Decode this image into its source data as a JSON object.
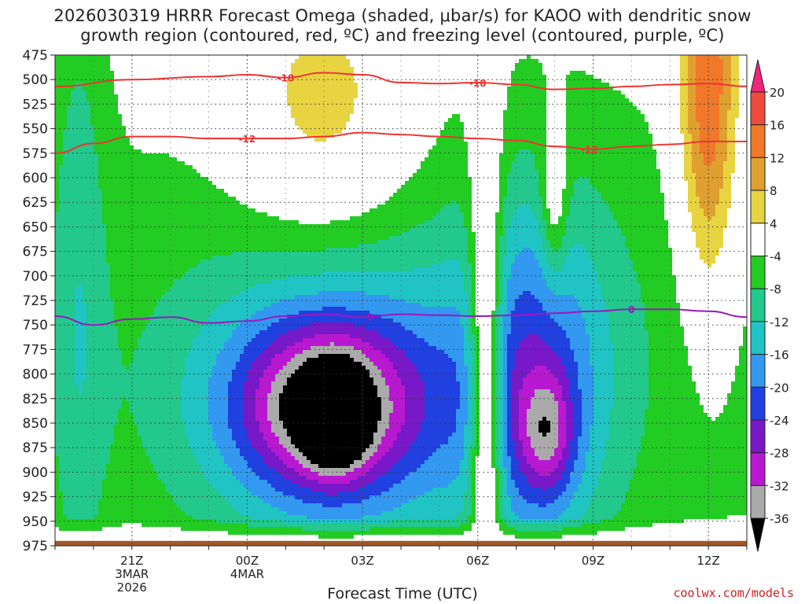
{
  "chart_data": {
    "type": "heatmap",
    "title_line1": "2026030319 HRRR Forecast Omega (shaded, μbar/s) for KAOO with dendritic snow",
    "title_line2": "growth region (contoured, red, ºC) and freezing level (contoured, purple, ºC)",
    "xlabel": "Forecast Time (UTC)",
    "ylabel": "",
    "credit": "coolwx.com/models",
    "y_ticks": [
      475,
      500,
      525,
      550,
      575,
      600,
      625,
      650,
      675,
      700,
      725,
      750,
      775,
      800,
      825,
      850,
      875,
      900,
      925,
      950,
      975
    ],
    "ylim": [
      475,
      975
    ],
    "x_ticks": [
      {
        "h": 2,
        "l1": "21Z",
        "l2": "3MAR",
        "l3": "2026"
      },
      {
        "h": 5,
        "l1": "00Z",
        "l2": "4MAR",
        "l3": ""
      },
      {
        "h": 8,
        "l1": "03Z",
        "l2": "",
        "l3": ""
      },
      {
        "h": 11,
        "l1": "06Z",
        "l2": "",
        "l3": ""
      },
      {
        "h": 14,
        "l1": "09Z",
        "l2": "",
        "l3": ""
      },
      {
        "h": 17,
        "l1": "12Z",
        "l2": "",
        "l3": ""
      }
    ],
    "xlim": [
      0,
      18
    ],
    "colorbar": {
      "labels": [
        "20",
        "16",
        "12",
        "8",
        "4",
        "-4",
        "-8",
        "-12",
        "-16",
        "-20",
        "-24",
        "-28",
        "-32",
        "-36"
      ],
      "levels": [
        20,
        16,
        12,
        8,
        4,
        -4,
        -8,
        -12,
        -16,
        -20,
        -24,
        -28,
        -32,
        -36
      ],
      "colors": [
        "#f0247a",
        "#f04a3c",
        "#f07828",
        "#e0a030",
        "#e8d440",
        "#ffffff",
        "#22cc22",
        "#22c88c",
        "#20c4c4",
        "#3398f0",
        "#2040e0",
        "#7818c8",
        "#b818d0",
        "#aaaaaa",
        "#000000"
      ]
    },
    "omega_features": [
      {
        "name": "broad-green",
        "x": 9.5,
        "p": 780,
        "sx": 8.2,
        "sp": 230,
        "v": -9
      },
      {
        "name": "left-column",
        "x": 0.6,
        "p": 700,
        "sx": 0.55,
        "sp": 300,
        "v": -7
      },
      {
        "name": "main-core",
        "x": 7.3,
        "p": 830,
        "sx": 2.6,
        "sp": 95,
        "v": -16
      },
      {
        "name": "main-core-deep",
        "x": 7.0,
        "p": 835,
        "sx": 1.4,
        "sp": 55,
        "v": -20
      },
      {
        "name": "main-black",
        "x": 7.3,
        "p": 845,
        "sx": 0.5,
        "sp": 32,
        "v": -22
      },
      {
        "name": "second-core",
        "x": 12.5,
        "p": 810,
        "sx": 1.3,
        "sp": 130,
        "v": -14
      },
      {
        "name": "second-deep",
        "x": 12.8,
        "p": 860,
        "sx": 0.5,
        "sp": 45,
        "v": -14
      },
      {
        "name": "upper-sink",
        "x": 7.0,
        "p": 540,
        "sx": 1.7,
        "sp": 100,
        "v": 10
      },
      {
        "name": "small-sink",
        "x": 13.0,
        "p": 625,
        "sx": 0.25,
        "sp": 60,
        "v": 10
      },
      {
        "name": "right-sink",
        "x": 17.0,
        "p": 520,
        "sx": 0.55,
        "sp": 150,
        "v": 18
      },
      {
        "name": "clear-gap",
        "x": 11.2,
        "p": 750,
        "sx": 0.3,
        "sp": 400,
        "v": 4
      },
      {
        "name": "ground-mask",
        "x": 9.0,
        "p": 1000,
        "sx": 30,
        "sp": 30,
        "v": 0
      }
    ],
    "series": [
      {
        "name": "-18 C isotherm",
        "color": "#ee3333",
        "label": "-18",
        "x": [
          0,
          2,
          4,
          5,
          6,
          7,
          8,
          9,
          10,
          11,
          12,
          13,
          14,
          15,
          16,
          17,
          18
        ],
        "p": [
          507,
          500,
          497,
          495,
          498,
          493,
          495,
          503,
          504,
          503,
          505,
          510,
          509,
          507,
          505,
          504,
          507
        ]
      },
      {
        "name": "-12 C isotherm",
        "color": "#ee3333",
        "label": "-12",
        "x": [
          0,
          1,
          2,
          3,
          4,
          5,
          6,
          7,
          8,
          9,
          10,
          11,
          12,
          13,
          14,
          15,
          16,
          17,
          18
        ],
        "p": [
          575,
          565,
          558,
          558,
          560,
          560,
          560,
          558,
          554,
          556,
          558,
          560,
          562,
          568,
          571,
          568,
          566,
          563,
          563
        ]
      },
      {
        "name": "0 C freezing level",
        "color": "#9a18c0",
        "label": "0",
        "x": [
          0,
          1,
          2,
          3,
          4,
          5,
          6,
          7,
          8,
          9,
          10,
          11,
          12,
          13,
          14,
          15,
          16,
          17,
          18
        ],
        "p": [
          741,
          750,
          744,
          742,
          748,
          746,
          741,
          739,
          742,
          739,
          740,
          741,
          740,
          738,
          736,
          734,
          734,
          736,
          742
        ]
      }
    ],
    "ground_color": "#a05828"
  }
}
